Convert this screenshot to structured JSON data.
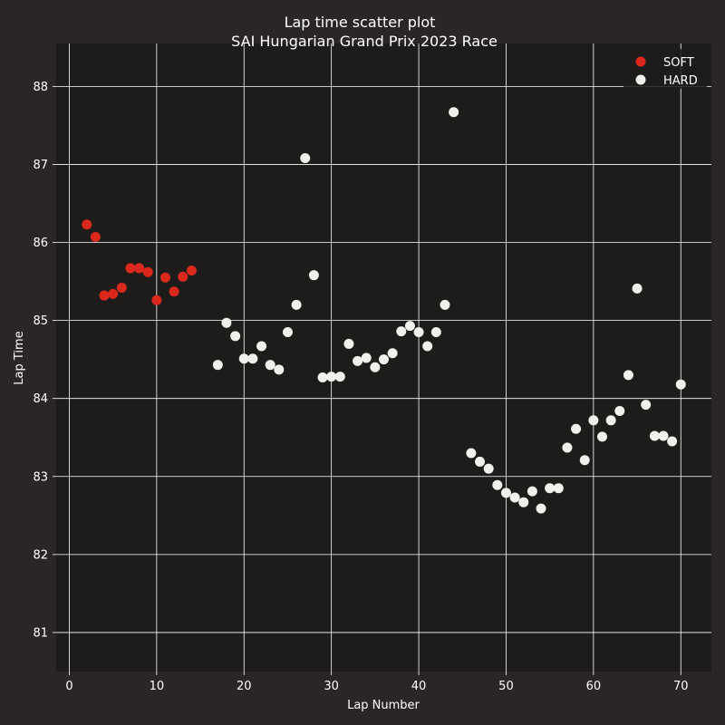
{
  "colors": {
    "figure_bg": "#292625",
    "axes_bg": "#1e1c1b",
    "grid": "#ffffff",
    "text": "#ffffff",
    "soft": "#da291c",
    "hard": "#f0f0ec"
  },
  "chart_data": {
    "type": "scatter",
    "title": "Lap time scatter plot",
    "subtitle": "SAI Hungarian Grand Prix 2023 Race",
    "xlabel": "Lap Number",
    "ylabel": "Lap Time",
    "xlim": [
      -1.5,
      73.5
    ],
    "ylim": [
      80.5,
      88.55
    ],
    "xticks": [
      0,
      10,
      20,
      30,
      40,
      50,
      60,
      70
    ],
    "yticks": [
      81,
      82,
      83,
      84,
      85,
      86,
      87,
      88
    ],
    "grid": true,
    "legend_position": "top-right",
    "series": [
      {
        "name": "SOFT",
        "color": "#da291c",
        "x": [
          2,
          3,
          4,
          5,
          6,
          7,
          8,
          9,
          10,
          11,
          12,
          13,
          14
        ],
        "y": [
          86.23,
          86.07,
          85.32,
          85.34,
          85.42,
          85.67,
          85.67,
          85.62,
          85.26,
          85.55,
          85.37,
          85.56,
          85.64
        ]
      },
      {
        "name": "HARD",
        "color": "#f0f0ec",
        "x": [
          17,
          18,
          19,
          20,
          21,
          22,
          23,
          24,
          25,
          26,
          27,
          28,
          29,
          30,
          31,
          32,
          33,
          34,
          35,
          36,
          37,
          38,
          39,
          40,
          41,
          42,
          43,
          44,
          46,
          47,
          48,
          49,
          50,
          51,
          52,
          53,
          54,
          55,
          56,
          57,
          58,
          59,
          60,
          61,
          62,
          63,
          64,
          65,
          66,
          67,
          68,
          69,
          70
        ],
        "y": [
          84.43,
          84.97,
          84.8,
          84.51,
          84.51,
          84.67,
          84.43,
          84.37,
          84.85,
          85.2,
          87.08,
          85.58,
          84.27,
          84.28,
          84.28,
          84.7,
          84.48,
          84.52,
          84.4,
          84.5,
          84.58,
          84.86,
          84.93,
          84.85,
          84.67,
          84.85,
          85.2,
          87.67,
          83.3,
          83.19,
          83.1,
          82.89,
          82.79,
          82.73,
          82.67,
          82.81,
          82.59,
          82.85,
          82.85,
          83.37,
          83.61,
          83.21,
          83.72,
          83.51,
          83.72,
          83.84,
          84.3,
          85.41,
          83.92,
          83.52,
          83.52,
          83.45,
          84.18
        ]
      }
    ]
  }
}
